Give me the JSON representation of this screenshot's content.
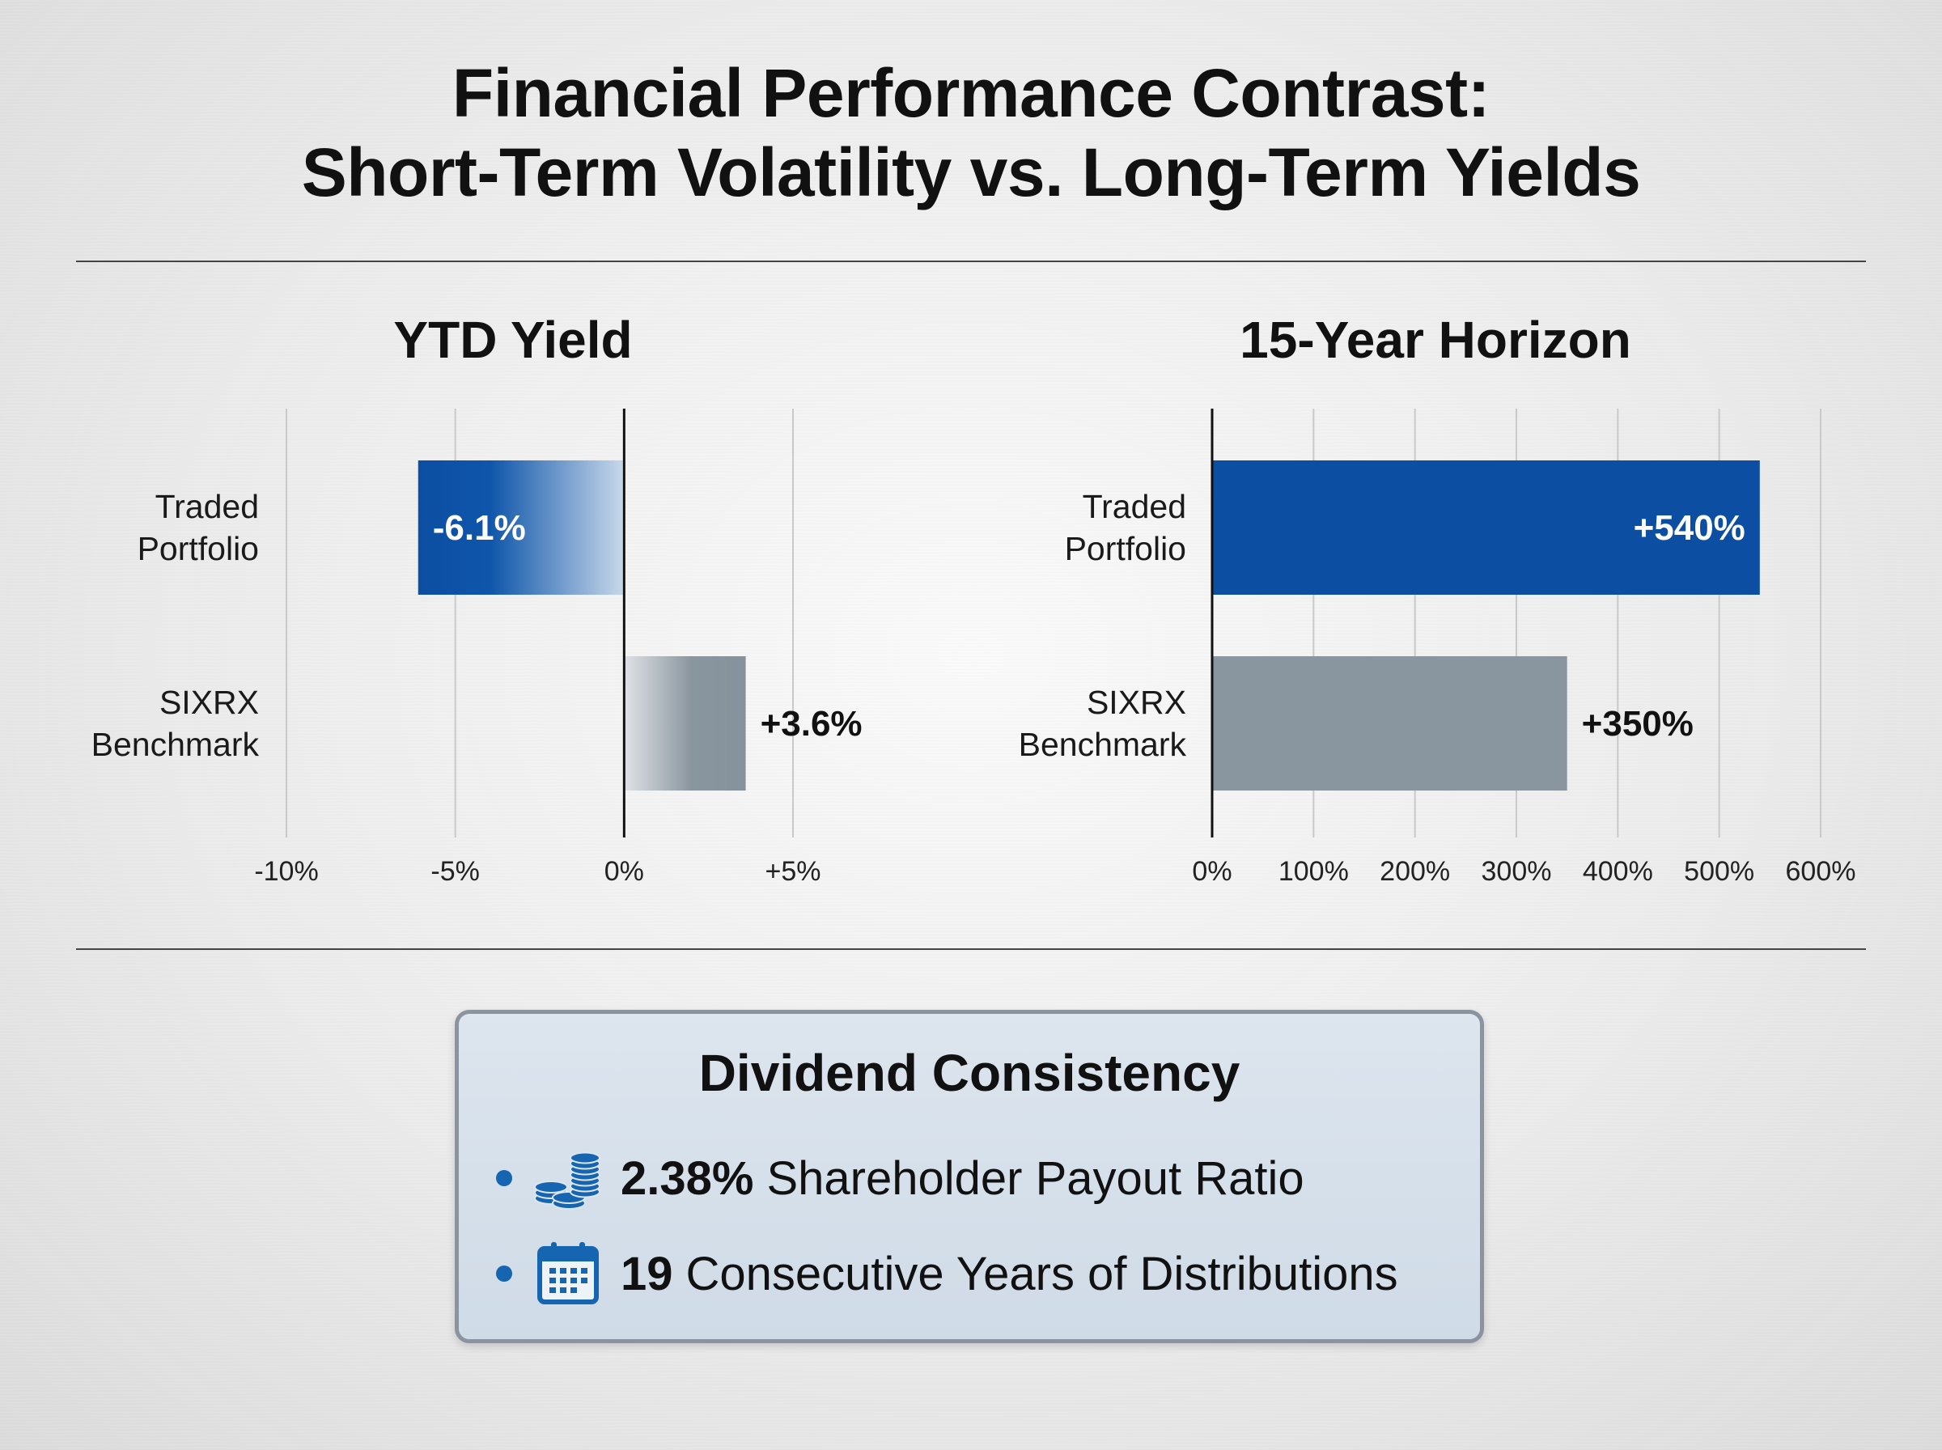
{
  "title": {
    "line1": "Financial Performance Contrast:",
    "line2": "Short-Term Volatility vs. Long-Term Yields"
  },
  "colors": {
    "portfolio_blue": "#0b4ea2",
    "benchmark_gray": "#8a969f",
    "accent_blue": "#1565b0"
  },
  "chart_data": [
    {
      "type": "bar",
      "orientation": "horizontal",
      "title": "YTD Yield",
      "categories": [
        "Traded Portfolio",
        "SIXRX Benchmark"
      ],
      "category_lines": [
        [
          "Traded",
          "Portfolio"
        ],
        [
          "SIXRX",
          "Benchmark"
        ]
      ],
      "values": [
        -6.1,
        3.6
      ],
      "data_labels": [
        "-6.1%",
        "+3.6%"
      ],
      "xlim": [
        -10,
        5
      ],
      "ticks": [
        -10,
        -5,
        0,
        5
      ],
      "tick_labels": [
        "-10%",
        "-5%",
        "0%",
        "+5%"
      ],
      "grid": true
    },
    {
      "type": "bar",
      "orientation": "horizontal",
      "title": "15-Year Horizon",
      "categories": [
        "Traded Portfolio",
        "SIXRX Benchmark"
      ],
      "category_lines": [
        [
          "Traded",
          "Portfolio"
        ],
        [
          "SIXRX",
          "Benchmark"
        ]
      ],
      "values": [
        540,
        350
      ],
      "data_labels": [
        "+540%",
        "+350%"
      ],
      "xlim": [
        0,
        600
      ],
      "ticks": [
        0,
        100,
        200,
        300,
        400,
        500,
        600
      ],
      "tick_labels": [
        "0%",
        "100%",
        "200%",
        "300%",
        "400%",
        "500%",
        "600%"
      ],
      "grid": true
    }
  ],
  "dividend": {
    "title": "Dividend Consistency",
    "items": [
      {
        "icon": "coin-stack-icon",
        "value": "2.38%",
        "text": "Shareholder Payout Ratio"
      },
      {
        "icon": "calendar-icon",
        "value": "19",
        "text": "Consecutive Years of Distributions"
      }
    ]
  }
}
